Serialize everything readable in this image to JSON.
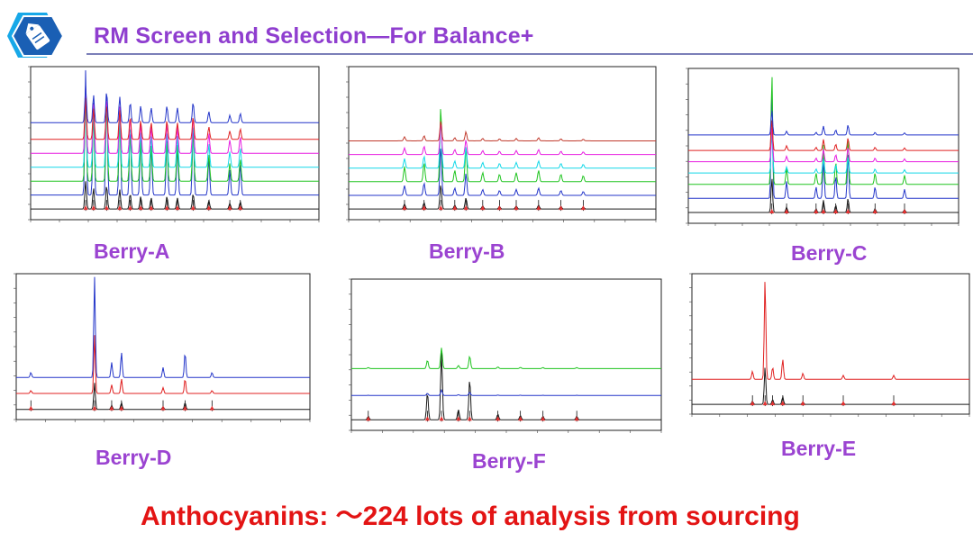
{
  "slide": {
    "title": "RM Screen and Selection—For Balance+",
    "caption": "Anthocyanins:  ～224 lots  of analysis from sourcing",
    "logo_icon": "price-tag-icon",
    "colors": {
      "title": "#8f3ecf",
      "label": "#9b44d1",
      "caption": "#e31414",
      "logo": "#1a5fb4"
    }
  },
  "chart_data": [
    {
      "id": "berry-a",
      "label": "Berry-A",
      "type": "line",
      "x": [
        0,
        55
      ],
      "peaks": [
        [
          10.5,
          1
        ],
        [
          12,
          0.75
        ],
        [
          14.5,
          0.85
        ],
        [
          17,
          0.7
        ],
        [
          19,
          0.55
        ],
        [
          21,
          0.45
        ],
        [
          23,
          0.4
        ],
        [
          26,
          0.45
        ],
        [
          28,
          0.4
        ],
        [
          31,
          0.55
        ],
        [
          34,
          0.3
        ],
        [
          38,
          0.2
        ],
        [
          40,
          0.25
        ]
      ],
      "series": [
        {
          "name": "trace-1",
          "color": "#1a1a1a",
          "level": 0,
          "peak_scale": 0.2
        },
        {
          "name": "trace-2",
          "color": "#2335c9",
          "level": 0.1,
          "peak_scale": 1
        },
        {
          "name": "trace-3",
          "color": "#1fc41f",
          "level": 0.2,
          "peak_scale": 0.8
        },
        {
          "name": "trace-4",
          "color": "#12d8e8",
          "level": 0.3,
          "peak_scale": 0.8
        },
        {
          "name": "trace-5",
          "color": "#e71fe0",
          "level": 0.4,
          "peak_scale": 0.8
        },
        {
          "name": "trace-6",
          "color": "#e02020",
          "level": 0.5,
          "peak_scale": 0.6
        },
        {
          "name": "trace-7",
          "color": "#2335c9",
          "level": 0.62,
          "peak_scale": 0.7
        }
      ]
    },
    {
      "id": "berry-b",
      "label": "Berry-B",
      "type": "line",
      "x": [
        0,
        55
      ],
      "peaks": [
        [
          10,
          0.2
        ],
        [
          13.5,
          0.25
        ],
        [
          16.5,
          1
        ],
        [
          19,
          0.15
        ],
        [
          21,
          0.45
        ],
        [
          24,
          0.12
        ],
        [
          27,
          0.1
        ],
        [
          30,
          0.12
        ],
        [
          34,
          0.15
        ],
        [
          38,
          0.1
        ],
        [
          42,
          0.08
        ]
      ],
      "series": [
        {
          "name": "trace-1",
          "color": "#1a1a1a",
          "level": 0,
          "peak_scale": 0.18
        },
        {
          "name": "trace-2",
          "color": "#2335c9",
          "level": 0.1,
          "peak_scale": 0.4
        },
        {
          "name": "trace-3",
          "color": "#1fc41f",
          "level": 0.2,
          "peak_scale": 0.7
        },
        {
          "name": "trace-4",
          "color": "#12d8e8",
          "level": 0.3,
          "peak_scale": 0.5
        },
        {
          "name": "trace-5",
          "color": "#e71fe0",
          "level": 0.4,
          "peak_scale": 0.4
        },
        {
          "name": "trace-6",
          "color": "#c0392b",
          "level": 0.5,
          "peak_scale": 0.3
        }
      ]
    },
    {
      "id": "berry-c",
      "label": "Berry-C",
      "type": "line",
      "x": [
        0,
        55
      ],
      "peaks": [
        [
          17,
          1
        ],
        [
          20,
          0.15
        ],
        [
          26,
          0.1
        ],
        [
          27.5,
          0.35
        ],
        [
          30,
          0.2
        ],
        [
          32.5,
          0.4
        ],
        [
          38,
          0.1
        ],
        [
          44,
          0.08
        ]
      ],
      "series": [
        {
          "name": "trace-1",
          "color": "#1a1a1a",
          "level": 0,
          "peak_scale": 0.25
        },
        {
          "name": "trace-2",
          "color": "#2335c9",
          "level": 0.1,
          "peak_scale": 0.9
        },
        {
          "name": "trace-3",
          "color": "#1fc41f",
          "level": 0.2,
          "peak_scale": 1
        },
        {
          "name": "trace-4",
          "color": "#12d8e8",
          "level": 0.28,
          "peak_scale": 0.4
        },
        {
          "name": "trace-5",
          "color": "#e71fe0",
          "level": 0.36,
          "peak_scale": 0.4
        },
        {
          "name": "trace-6",
          "color": "#e02020",
          "level": 0.44,
          "peak_scale": 0.4
        },
        {
          "name": "trace-7",
          "color": "#2335c9",
          "level": 0.55,
          "peak_scale": 0.4
        }
      ]
    },
    {
      "id": "berry-d",
      "label": "Berry-D",
      "type": "line",
      "x": [
        0,
        60
      ],
      "peaks": [
        [
          3,
          0.05
        ],
        [
          16,
          1
        ],
        [
          19.5,
          0.15
        ],
        [
          21.5,
          0.25
        ],
        [
          30,
          0.1
        ],
        [
          34.5,
          0.25
        ],
        [
          40,
          0.05
        ]
      ],
      "series": [
        {
          "name": "trace-1",
          "color": "#1a1a1a",
          "level": 0,
          "peak_scale": 0.2
        },
        {
          "name": "trace-2",
          "color": "#e02020",
          "level": 0.12,
          "peak_scale": 0.5
        },
        {
          "name": "trace-3",
          "color": "#2335c9",
          "level": 0.24,
          "peak_scale": 1
        }
      ]
    },
    {
      "id": "berry-f",
      "label": "Berry-F",
      "type": "line",
      "x": [
        0,
        55
      ],
      "peaks": [
        [
          3,
          0.05
        ],
        [
          13.5,
          0.4
        ],
        [
          16,
          1
        ],
        [
          19,
          0.15
        ],
        [
          21,
          0.6
        ],
        [
          26,
          0.08
        ],
        [
          30,
          0.06
        ],
        [
          34,
          0.05
        ],
        [
          40,
          0.05
        ]
      ],
      "series": [
        {
          "name": "trace-1",
          "color": "#1a1a1a",
          "level": 0,
          "peak_scale": 0.5
        },
        {
          "name": "trace-2",
          "color": "#2335c9",
          "level": 0.18,
          "peak_scale": 0.05
        },
        {
          "name": "trace-3",
          "color": "#1fc41f",
          "level": 0.38,
          "peak_scale": 0.25
        }
      ]
    },
    {
      "id": "berry-e",
      "label": "Berry-E",
      "type": "line",
      "x": [
        0,
        55
      ],
      "peaks": [
        [
          12,
          0.08
        ],
        [
          14.5,
          1
        ],
        [
          16,
          0.12
        ],
        [
          18,
          0.2
        ],
        [
          22,
          0.06
        ],
        [
          30,
          0.04
        ],
        [
          40,
          0.04
        ]
      ],
      "series": [
        {
          "name": "trace-1",
          "color": "#1a1a1a",
          "level": 0,
          "peak_scale": 0.3
        },
        {
          "name": "trace-2",
          "color": "#e02020",
          "level": 0.2,
          "peak_scale": 1
        }
      ]
    }
  ]
}
